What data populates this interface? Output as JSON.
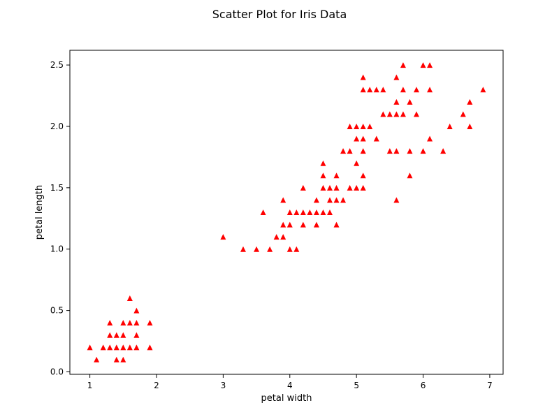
{
  "chart_data": {
    "type": "scatter",
    "title": "Scatter Plot for Iris Data",
    "xlabel": "petal width",
    "ylabel": "petal length",
    "xlim": [
      0.7,
      7.2
    ],
    "ylim": [
      -0.02,
      2.62
    ],
    "xticks": [
      1,
      2,
      3,
      4,
      5,
      6,
      7
    ],
    "xtick_labels": [
      "1",
      "2",
      "3",
      "4",
      "5",
      "6",
      "7"
    ],
    "yticks": [
      0.0,
      0.5,
      1.0,
      1.5,
      2.0,
      2.5
    ],
    "ytick_labels": [
      "0.0",
      "0.5",
      "1.0",
      "1.5",
      "2.0",
      "2.5"
    ],
    "grid": false,
    "legend": "none",
    "marker": "triangle-up",
    "marker_color": "#ff0000",
    "series": [
      {
        "points": [
          [
            1.0,
            0.2
          ],
          [
            1.1,
            0.1
          ],
          [
            1.2,
            0.2
          ],
          [
            1.3,
            0.2
          ],
          [
            1.3,
            0.3
          ],
          [
            1.3,
            0.4
          ],
          [
            1.4,
            0.1
          ],
          [
            1.4,
            0.2
          ],
          [
            1.4,
            0.3
          ],
          [
            1.5,
            0.1
          ],
          [
            1.5,
            0.2
          ],
          [
            1.5,
            0.3
          ],
          [
            1.5,
            0.4
          ],
          [
            1.6,
            0.2
          ],
          [
            1.6,
            0.4
          ],
          [
            1.6,
            0.6
          ],
          [
            1.7,
            0.2
          ],
          [
            1.7,
            0.3
          ],
          [
            1.7,
            0.4
          ],
          [
            1.7,
            0.5
          ],
          [
            1.9,
            0.2
          ],
          [
            1.9,
            0.4
          ],
          [
            3.0,
            1.1
          ],
          [
            3.3,
            1.0
          ],
          [
            3.5,
            1.0
          ],
          [
            3.6,
            1.3
          ],
          [
            3.7,
            1.0
          ],
          [
            3.8,
            1.1
          ],
          [
            3.9,
            1.1
          ],
          [
            3.9,
            1.2
          ],
          [
            3.9,
            1.4
          ],
          [
            4.0,
            1.0
          ],
          [
            4.0,
            1.2
          ],
          [
            4.0,
            1.3
          ],
          [
            4.1,
            1.0
          ],
          [
            4.1,
            1.3
          ],
          [
            4.2,
            1.2
          ],
          [
            4.2,
            1.3
          ],
          [
            4.2,
            1.5
          ],
          [
            4.3,
            1.3
          ],
          [
            4.4,
            1.2
          ],
          [
            4.4,
            1.3
          ],
          [
            4.4,
            1.4
          ],
          [
            4.5,
            1.3
          ],
          [
            4.5,
            1.5
          ],
          [
            4.5,
            1.6
          ],
          [
            4.5,
            1.7
          ],
          [
            4.6,
            1.3
          ],
          [
            4.6,
            1.4
          ],
          [
            4.6,
            1.5
          ],
          [
            4.7,
            1.2
          ],
          [
            4.7,
            1.4
          ],
          [
            4.7,
            1.5
          ],
          [
            4.7,
            1.6
          ],
          [
            4.8,
            1.4
          ],
          [
            4.8,
            1.8
          ],
          [
            4.9,
            1.5
          ],
          [
            4.9,
            1.8
          ],
          [
            4.9,
            2.0
          ],
          [
            5.0,
            1.5
          ],
          [
            5.0,
            1.7
          ],
          [
            5.0,
            1.9
          ],
          [
            5.0,
            2.0
          ],
          [
            5.1,
            1.5
          ],
          [
            5.1,
            1.6
          ],
          [
            5.1,
            1.8
          ],
          [
            5.1,
            1.9
          ],
          [
            5.1,
            2.0
          ],
          [
            5.1,
            2.3
          ],
          [
            5.1,
            2.4
          ],
          [
            5.2,
            2.0
          ],
          [
            5.2,
            2.3
          ],
          [
            5.3,
            1.9
          ],
          [
            5.3,
            2.3
          ],
          [
            5.4,
            2.1
          ],
          [
            5.4,
            2.3
          ],
          [
            5.5,
            1.8
          ],
          [
            5.5,
            2.1
          ],
          [
            5.6,
            1.4
          ],
          [
            5.6,
            1.8
          ],
          [
            5.6,
            2.1
          ],
          [
            5.6,
            2.2
          ],
          [
            5.6,
            2.4
          ],
          [
            5.7,
            2.1
          ],
          [
            5.7,
            2.3
          ],
          [
            5.7,
            2.5
          ],
          [
            5.8,
            1.6
          ],
          [
            5.8,
            1.8
          ],
          [
            5.8,
            2.2
          ],
          [
            5.9,
            2.1
          ],
          [
            5.9,
            2.3
          ],
          [
            6.0,
            1.8
          ],
          [
            6.0,
            2.5
          ],
          [
            6.1,
            1.9
          ],
          [
            6.1,
            2.3
          ],
          [
            6.1,
            2.5
          ],
          [
            6.3,
            1.8
          ],
          [
            6.4,
            2.0
          ],
          [
            6.6,
            2.1
          ],
          [
            6.7,
            2.0
          ],
          [
            6.7,
            2.2
          ],
          [
            6.9,
            2.3
          ]
        ]
      }
    ]
  }
}
